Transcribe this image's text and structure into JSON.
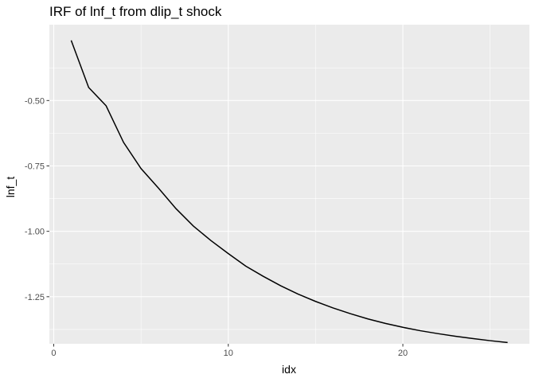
{
  "chart_data": {
    "type": "line",
    "title": "IRF of lnf_t from dlip_t shock",
    "xlabel": "idx",
    "ylabel": "lnf_t",
    "xlim": [
      -0.25,
      27.25
    ],
    "ylim": [
      -1.43,
      -0.21
    ],
    "x_ticks": [
      0,
      10,
      20
    ],
    "x_tick_labels": [
      "0",
      "10",
      "20"
    ],
    "y_ticks": [
      -0.5,
      -0.75,
      -1.0,
      -1.25
    ],
    "y_tick_labels": [
      "-0.50",
      "-0.75",
      "-1.00",
      "-1.25"
    ],
    "grid": true,
    "colors": {
      "panel": "#ebebeb",
      "grid": "#ffffff",
      "line": "#000000",
      "tick_label": "#4d4d4d"
    },
    "series": [
      {
        "x": [
          1,
          2,
          3,
          4,
          5,
          6,
          7,
          8,
          9,
          10,
          11,
          12,
          13,
          14,
          15,
          16,
          17,
          18,
          19,
          20,
          21,
          22,
          23,
          24,
          25,
          26
        ],
        "values": [
          -0.27,
          -0.45,
          -0.52,
          -0.66,
          -0.76,
          -0.835,
          -0.913,
          -0.98,
          -1.035,
          -1.085,
          -1.133,
          -1.172,
          -1.208,
          -1.24,
          -1.268,
          -1.293,
          -1.315,
          -1.335,
          -1.352,
          -1.367,
          -1.38,
          -1.391,
          -1.401,
          -1.41,
          -1.418,
          -1.425
        ]
      }
    ]
  }
}
